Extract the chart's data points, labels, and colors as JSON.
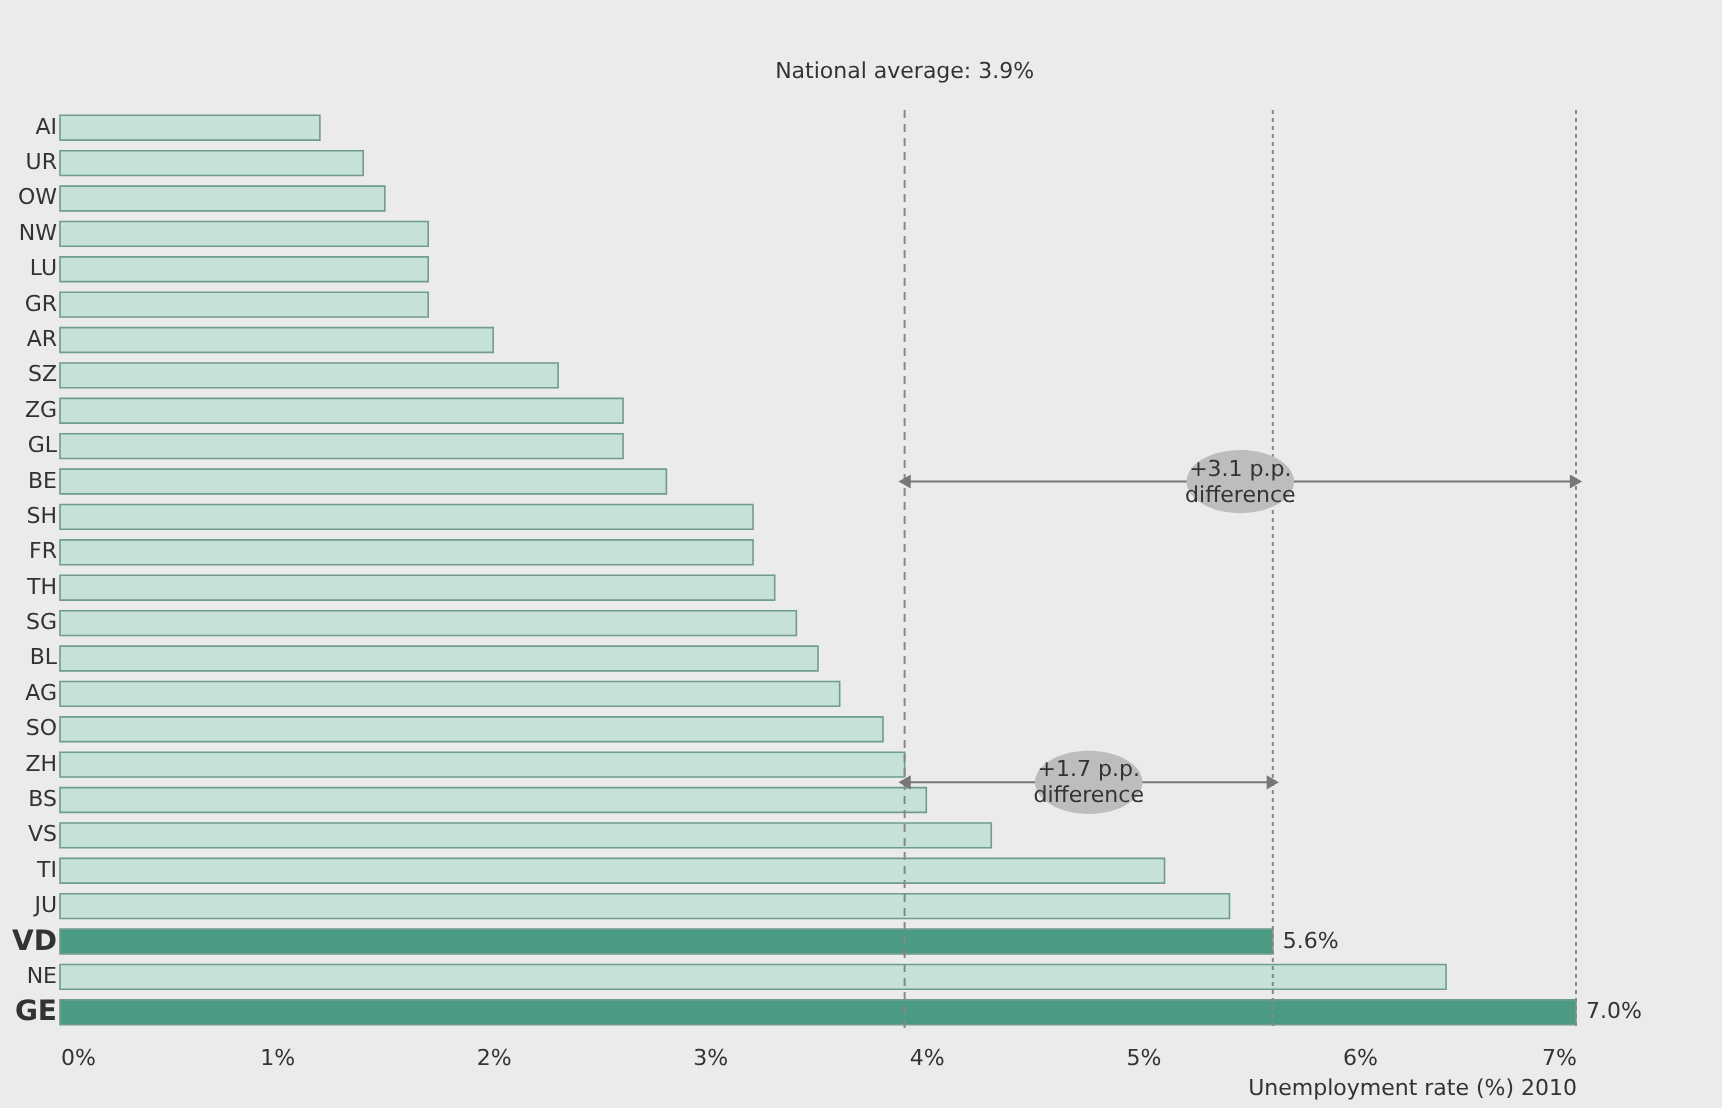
{
  "chart_data": {
    "type": "bar",
    "orientation": "horizontal",
    "categories": [
      "AI",
      "UR",
      "OW",
      "NW",
      "LU",
      "GR",
      "AR",
      "SZ",
      "ZG",
      "GL",
      "BE",
      "SH",
      "FR",
      "TH",
      "SG",
      "BL",
      "AG",
      "SO",
      "ZH",
      "BS",
      "VS",
      "TI",
      "JU",
      "VD",
      "NE",
      "GE"
    ],
    "values": [
      1.2,
      1.4,
      1.5,
      1.7,
      1.7,
      1.7,
      2.0,
      2.3,
      2.6,
      2.6,
      2.8,
      3.2,
      3.2,
      3.3,
      3.4,
      3.5,
      3.6,
      3.8,
      3.9,
      4.0,
      4.3,
      5.1,
      5.4,
      5.6,
      6.4,
      7.0
    ],
    "colors": [
      "#c6e2d8",
      "#c6e2d8",
      "#c6e2d8",
      "#c6e2d8",
      "#c6e2d8",
      "#c6e2d8",
      "#c6e2d8",
      "#c6e2d8",
      "#c6e2d8",
      "#c6e2d8",
      "#c6e2d8",
      "#c6e2d8",
      "#c6e2d8",
      "#c6e2d8",
      "#c6e2d8",
      "#c6e2d8",
      "#c6e2d8",
      "#c6e2d8",
      "#c6e2d8",
      "#c6e2d8",
      "#c6e2d8",
      "#c6e2d8",
      "#c6e2d8",
      "#4a9a84",
      "#c6e2d8",
      "#4a9a84"
    ],
    "value_labels": [
      null,
      null,
      null,
      null,
      null,
      null,
      null,
      null,
      null,
      null,
      null,
      null,
      null,
      null,
      null,
      null,
      null,
      null,
      null,
      null,
      null,
      null,
      null,
      "5.6%",
      null,
      "7.0%"
    ],
    "xlabel": "Unemployment rate (%) 2010",
    "xlim": [
      0,
      7
    ],
    "xticks": [
      {
        "value": 0,
        "label": "0%"
      },
      {
        "value": 1,
        "label": "1%"
      },
      {
        "value": 2,
        "label": "2%"
      },
      {
        "value": 3,
        "label": "3%"
      },
      {
        "value": 4,
        "label": "4%"
      },
      {
        "value": 5,
        "label": "5%"
      },
      {
        "value": 6,
        "label": "6%"
      },
      {
        "value": 7,
        "label": "7%"
      }
    ],
    "ref_lines": [
      {
        "axis": "x",
        "value": 3.9,
        "label": "National average: 3.9%",
        "line_style": "dashed",
        "color": "#888888"
      },
      {
        "axis": "x",
        "value": 7.0,
        "label": null,
        "line_style": "dotted",
        "color": "#888888"
      },
      {
        "axis": "x",
        "value": 5.6,
        "label": null,
        "line_style": "dotted",
        "color": "#888888"
      }
    ],
    "annotations": [
      "+3.1 p.p.\ndifference",
      "+1.7 p.p.\ndifference"
    ],
    "grid": false
  }
}
